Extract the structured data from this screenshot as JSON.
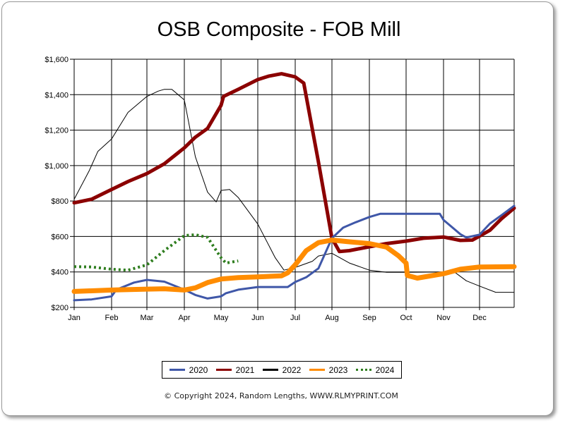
{
  "chart_data": {
    "type": "line",
    "title": "OSB Composite - FOB Mill",
    "xlabel": "",
    "ylabel": "",
    "x_ticks": [
      "Jan",
      "Feb",
      "Mar",
      "Apr",
      "May",
      "Jun",
      "Jul",
      "Aug",
      "Sep",
      "Oct",
      "Nov",
      "Dec"
    ],
    "y_ticks": [
      "$200",
      "$400",
      "$600",
      "$800",
      "$1,000",
      "$1,200",
      "$1,400",
      "$1,600"
    ],
    "ylim": [
      200,
      1600
    ],
    "grid": true,
    "legend": "bottom",
    "series": [
      {
        "name": "2020",
        "color": "#3f57a8",
        "style": "solid",
        "points": [
          [
            "Jan 1",
            240
          ],
          [
            "Jan 15",
            245
          ],
          [
            "Feb 1",
            262
          ],
          [
            "Feb 5",
            300
          ],
          [
            "Feb 20",
            340
          ],
          [
            "Mar 1",
            355
          ],
          [
            "Mar 15",
            345
          ],
          [
            "Apr 1",
            300
          ],
          [
            "Apr 10",
            270
          ],
          [
            "Apr 20",
            250
          ],
          [
            "May 1",
            262
          ],
          [
            "May 5",
            280
          ],
          [
            "May 15",
            300
          ],
          [
            "Jun 1",
            315
          ],
          [
            "Jun 25",
            315
          ],
          [
            "Jul 1",
            343
          ],
          [
            "Jul 10",
            370
          ],
          [
            "Jul 20",
            420
          ],
          [
            "Aug 1",
            590
          ],
          [
            "Aug 10",
            650
          ],
          [
            "Aug 20",
            680
          ],
          [
            "Sep 1",
            710
          ],
          [
            "Sep 10",
            728
          ],
          [
            "Oct 28",
            728
          ],
          [
            "Nov 1",
            693
          ],
          [
            "Nov 15",
            613
          ],
          [
            "Nov 20",
            594
          ],
          [
            "Dec 1",
            610
          ],
          [
            "Dec 10",
            673
          ],
          [
            "Dec 20",
            720
          ],
          [
            "Dec 31",
            773
          ]
        ]
      },
      {
        "name": "2021",
        "color": "#8b0000",
        "style": "solid",
        "points": [
          [
            "Jan 1",
            790
          ],
          [
            "Jan 15",
            810
          ],
          [
            "Feb 1",
            865
          ],
          [
            "Feb 15",
            910
          ],
          [
            "Mar 1",
            955
          ],
          [
            "Mar 15",
            1010
          ],
          [
            "Apr 1",
            1100
          ],
          [
            "Apr 10",
            1160
          ],
          [
            "Apr 20",
            1210
          ],
          [
            "May 1",
            1340
          ],
          [
            "May 3",
            1390
          ],
          [
            "May 15",
            1430
          ],
          [
            "Jun 1",
            1485
          ],
          [
            "Jun 10",
            1505
          ],
          [
            "Jun 20",
            1518
          ],
          [
            "Jul 1",
            1500
          ],
          [
            "Jul 8",
            1465
          ],
          [
            "Jul 20",
            1020
          ],
          [
            "Aug 1",
            590
          ],
          [
            "Aug 7",
            515
          ],
          [
            "Aug 15",
            520
          ],
          [
            "Sep 1",
            542
          ],
          [
            "Sep 15",
            560
          ],
          [
            "Oct 1",
            574
          ],
          [
            "Oct 15",
            590
          ],
          [
            "Nov 1",
            597
          ],
          [
            "Nov 15",
            578
          ],
          [
            "Nov 25",
            580
          ],
          [
            "Dec 1",
            602
          ],
          [
            "Dec 10",
            635
          ],
          [
            "Dec 20",
            700
          ],
          [
            "Dec 31",
            760
          ]
        ]
      },
      {
        "name": "2022",
        "color": "#000000",
        "style": "thin",
        "points": [
          [
            "Jan 1",
            810
          ],
          [
            "Jan 13",
            970
          ],
          [
            "Jan 20",
            1080
          ],
          [
            "Feb 1",
            1150
          ],
          [
            "Feb 15",
            1300
          ],
          [
            "Mar 1",
            1390
          ],
          [
            "Mar 10",
            1420
          ],
          [
            "Mar 15",
            1430
          ],
          [
            "Mar 21",
            1430
          ],
          [
            "Apr 1",
            1370
          ],
          [
            "Apr 10",
            1050
          ],
          [
            "Apr 20",
            850
          ],
          [
            "Apr 27",
            795
          ],
          [
            "May 1",
            860
          ],
          [
            "May 8",
            865
          ],
          [
            "May 15",
            820
          ],
          [
            "Jun 1",
            670
          ],
          [
            "Jun 15",
            480
          ],
          [
            "Jun 22",
            410
          ],
          [
            "Jul 1",
            425
          ],
          [
            "Jul 15",
            460
          ],
          [
            "Jul 20",
            490
          ],
          [
            "Aug 1",
            505
          ],
          [
            "Aug 15",
            450
          ],
          [
            "Sep 1",
            410
          ],
          [
            "Sep 15",
            398
          ],
          [
            "Oct 1",
            398
          ],
          [
            "Nov 10",
            400
          ],
          [
            "Nov 20",
            350
          ],
          [
            "Dec 1",
            320
          ],
          [
            "Dec 15",
            285
          ],
          [
            "Dec 31",
            285
          ]
        ]
      },
      {
        "name": "2023",
        "color": "#ff8c00",
        "style": "thick",
        "points": [
          [
            "Jan 1",
            290
          ],
          [
            "Feb 1",
            298
          ],
          [
            "Mar 1",
            303
          ],
          [
            "Mar 15",
            305
          ],
          [
            "Apr 1",
            298
          ],
          [
            "Apr 10",
            310
          ],
          [
            "Apr 20",
            340
          ],
          [
            "May 1",
            360
          ],
          [
            "May 15",
            368
          ],
          [
            "Jun 1",
            372
          ],
          [
            "Jun 20",
            378
          ],
          [
            "Jun 25",
            395
          ],
          [
            "Jul 1",
            440
          ],
          [
            "Jul 10",
            520
          ],
          [
            "Jul 20",
            565
          ],
          [
            "Aug 1",
            580
          ],
          [
            "Aug 15",
            570
          ],
          [
            "Sep 1",
            560
          ],
          [
            "Sep 15",
            540
          ],
          [
            "Sep 25",
            490
          ],
          [
            "Oct 1",
            450
          ],
          [
            "Oct 2",
            380
          ],
          [
            "Oct 10",
            365
          ],
          [
            "Nov 1",
            390
          ],
          [
            "Nov 15",
            415
          ],
          [
            "Dec 1",
            428
          ],
          [
            "Dec 31",
            430
          ]
        ]
      },
      {
        "name": "2024",
        "color": "#2e7d1e",
        "style": "dotted",
        "points": [
          [
            "Jan 1",
            430
          ],
          [
            "Jan 15",
            428
          ],
          [
            "Feb 1",
            415
          ],
          [
            "Feb 15",
            410
          ],
          [
            "Mar 1",
            440
          ],
          [
            "Mar 15",
            520
          ],
          [
            "Apr 1",
            605
          ],
          [
            "Apr 10",
            610
          ],
          [
            "Apr 20",
            595
          ],
          [
            "May 1",
            480
          ],
          [
            "May 5",
            450
          ],
          [
            "May 15",
            462
          ]
        ]
      }
    ]
  },
  "copyright": "© Copyright 2024, Random Lengths, WWW.RLMYPRINT.COM"
}
